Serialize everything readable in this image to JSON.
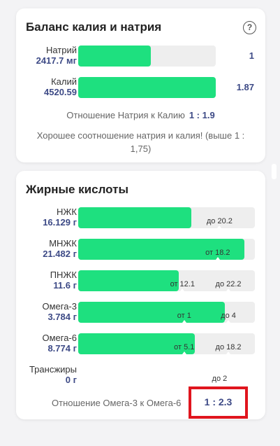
{
  "balance": {
    "title": "Баланс калия и натрия",
    "help_icon": "help-icon",
    "help_glyph": "?",
    "rows": [
      {
        "name": "Натрий",
        "amount": "2417.7 мг",
        "ratio": "1",
        "fill_fraction": 0.53
      },
      {
        "name": "Калий",
        "amount": "4520.59",
        "ratio": "1.87",
        "fill_fraction": 1.0
      }
    ],
    "ratio_label": "Отношение Натрия к Калию",
    "ratio_value": "1 : 1.9",
    "note": "Хорошее соотношение натрия и калия! (выше 1 : 1,75)"
  },
  "fats": {
    "title": "Жирные кислоты",
    "rows": [
      {
        "name": "НЖК",
        "amount": "16.129 г",
        "fill_fraction": 0.64,
        "min_label": "",
        "max_label": "до 20.2",
        "min_pos": 0,
        "max_pos": 0.8
      },
      {
        "name": "МНЖК",
        "amount": "21.482 г",
        "fill_fraction": 0.94,
        "min_label": "от 18.2",
        "max_label": "",
        "min_pos": 0.79,
        "max_pos": 0
      },
      {
        "name": "ПНЖК",
        "amount": "11.6 г",
        "fill_fraction": 0.57,
        "min_label": "от 12.1",
        "max_label": "до 22.2",
        "min_pos": 0.59,
        "max_pos": 0.85
      },
      {
        "name": "Омега-3",
        "amount": "3.784 г",
        "fill_fraction": 0.83,
        "min_label": "от 1",
        "max_label": "до 4",
        "min_pos": 0.6,
        "max_pos": 0.85
      },
      {
        "name": "Омега-6",
        "amount": "8.774 г",
        "fill_fraction": 0.66,
        "min_label": "от 5.1",
        "max_label": "до 18.2",
        "min_pos": 0.6,
        "max_pos": 0.85
      },
      {
        "name": "Трансжиры",
        "amount": "0 г",
        "fill_fraction": 0.0,
        "min_label": "",
        "max_label": "до 2",
        "min_pos": 0,
        "max_pos": 0.8
      }
    ],
    "ratio_label": "Отношение Омега-3 к Омега-6",
    "ratio_value": "1 : 2.3"
  },
  "colors": {
    "fill": "#1ee07f",
    "track": "#eeeeee",
    "value_text": "#3d4a86",
    "highlight": "#e0151e"
  }
}
